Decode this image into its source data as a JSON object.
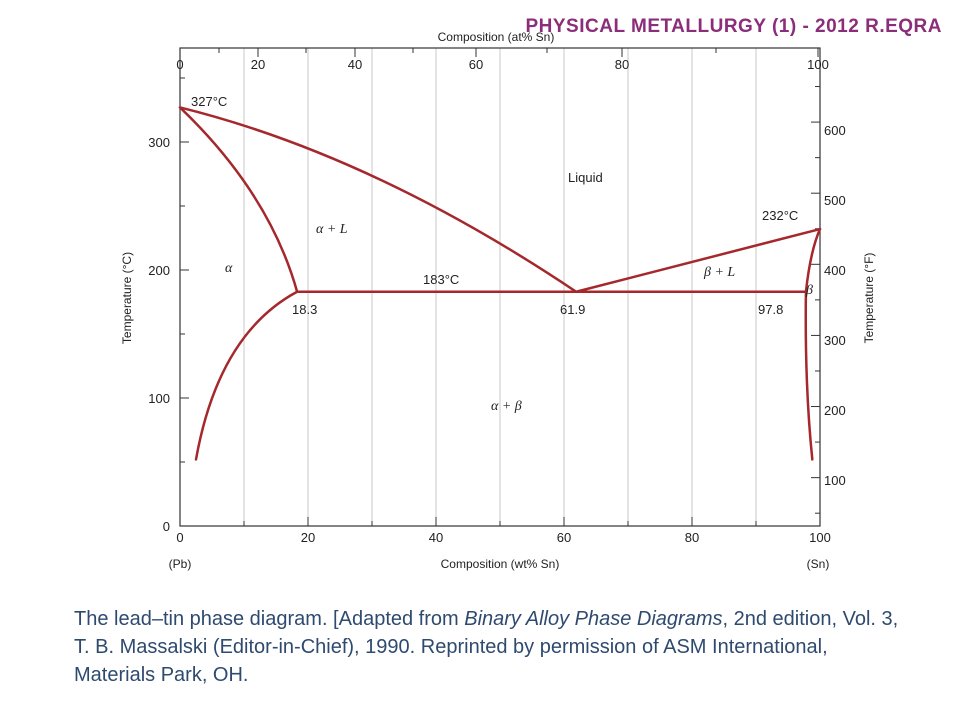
{
  "header": {
    "title": "PHYSICAL METALLURGY (1) - 2012 R.EQRA"
  },
  "colors": {
    "curve": "#a4282c",
    "header": "#8b2d7a",
    "caption": "#2e4a6f"
  },
  "diagram": {
    "top_axis": {
      "title": "Composition (at% Sn)",
      "ticks": [
        0,
        20,
        40,
        60,
        80,
        100
      ]
    },
    "bottom_axis": {
      "title": "Composition (wt% Sn)",
      "ticks": [
        0,
        20,
        40,
        60,
        80,
        100
      ],
      "left_end": "(Pb)",
      "right_end": "(Sn)"
    },
    "left_axis": {
      "title": "Temperature (°C)",
      "ticks": [
        0,
        100,
        200,
        300
      ]
    },
    "right_axis": {
      "title": "Temperature (°F)",
      "ticks": [
        100,
        200,
        300,
        400,
        500,
        600
      ]
    },
    "labels": {
      "pb_melting": "327°C",
      "sn_melting": "232°C",
      "eutectic_temp": "183°C",
      "alpha_limit": "18.3",
      "eutectic_comp": "61.9",
      "beta_limit": "97.8",
      "liquid": "Liquid",
      "alpha_l": "α + L",
      "beta_l": "β + L",
      "alpha": "α",
      "beta": "β",
      "alpha_beta": "α + β"
    }
  },
  "caption": {
    "part1": "The lead–tin phase diagram. [Adapted from ",
    "italic": "Binary Alloy Phase Diagrams",
    "part2": ", 2nd edition, Vol. 3, T. B. Massalski (Editor-in-Chief), 1990. Reprinted by permission of ASM International, Materials Park, OH."
  }
}
